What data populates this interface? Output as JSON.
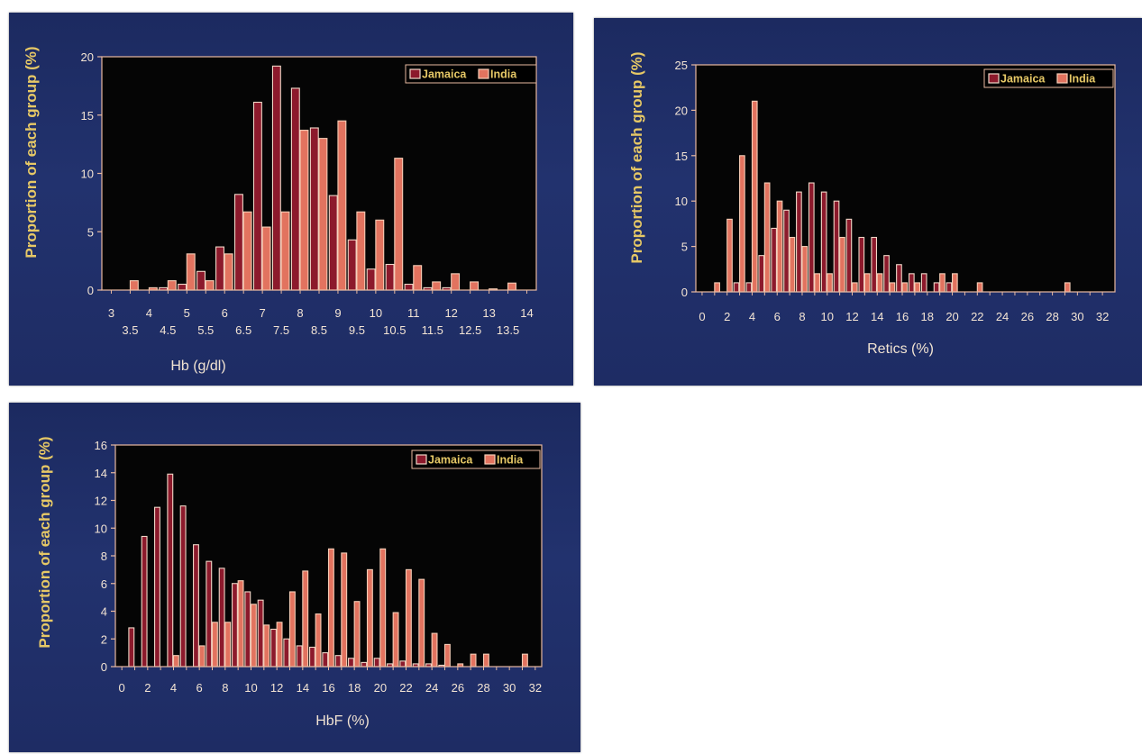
{
  "colors": {
    "background": "#ffffff",
    "slide_bg": "#1f2d66",
    "plot_bg": "#050505",
    "axis_line": "#e8b9a0",
    "jamaica_fill": "#8c1a2c",
    "jamaica_stroke": "#f0d8c8",
    "india_fill": "#e2735f",
    "india_stroke": "#f6cdb6",
    "title_yellow": "#e6c866",
    "text_light": "#f1e3d2"
  },
  "chart_data": [
    {
      "id": "hb",
      "type": "bar",
      "ylabel": "Proportion of each group (%)",
      "xlabel": "Hb (g/dl)",
      "ylim": [
        0,
        20
      ],
      "yticks": [
        0,
        5,
        10,
        15,
        20
      ],
      "xlim": [
        2.75,
        14.25
      ],
      "xticks_row1": [
        "3",
        "4",
        "5",
        "6",
        "7",
        "8",
        "9",
        "10",
        "11",
        "12",
        "13",
        "14"
      ],
      "xticks_row2": [
        "3.5",
        "4.5",
        "5.5",
        "6.5",
        "7.5",
        "8.5",
        "9.5",
        "10.5",
        "11.5",
        "12.5",
        "13.5"
      ],
      "legend": {
        "placement": "top-right",
        "entries": [
          "Jamaica",
          "India"
        ]
      },
      "x": [
        3,
        3.5,
        4,
        4.5,
        5,
        5.5,
        6,
        6.5,
        7,
        7.5,
        8,
        8.5,
        9,
        9.5,
        10,
        10.5,
        11,
        11.5,
        12,
        12.5,
        13,
        13.5,
        14
      ],
      "series": [
        {
          "name": "Jamaica",
          "values": [
            0,
            0,
            0,
            0.2,
            0.5,
            1.6,
            3.7,
            8.2,
            16.1,
            19.2,
            17.3,
            13.9,
            8.1,
            4.3,
            1.8,
            2.2,
            0.5,
            0.2,
            0.2,
            0,
            0,
            0,
            0
          ]
        },
        {
          "name": "India",
          "values": [
            0,
            0.8,
            0.2,
            0.8,
            3.1,
            0.8,
            3.1,
            6.7,
            5.4,
            6.7,
            13.7,
            13.0,
            14.5,
            6.7,
            6.0,
            11.3,
            2.1,
            0.7,
            1.4,
            0.7,
            0.1,
            0.6,
            0
          ]
        }
      ]
    },
    {
      "id": "retics",
      "type": "bar",
      "ylabel": "Proportion of each group (%)",
      "xlabel": "Retics (%)",
      "ylim": [
        0,
        25
      ],
      "yticks": [
        0,
        5,
        10,
        15,
        20,
        25
      ],
      "xlim": [
        -0.5,
        33
      ],
      "xticks_row1": [
        "0",
        "2",
        "4",
        "6",
        "8",
        "10",
        "12",
        "14",
        "16",
        "18",
        "20",
        "22",
        "24",
        "26",
        "28",
        "30",
        "32"
      ],
      "legend": {
        "placement": "top-right",
        "entries": [
          "Jamaica",
          "India"
        ]
      },
      "x": [
        0,
        1,
        2,
        3,
        4,
        5,
        6,
        7,
        8,
        9,
        10,
        11,
        12,
        13,
        14,
        15,
        16,
        17,
        18,
        19,
        20,
        21,
        22,
        23,
        24,
        25,
        26,
        27,
        28,
        29,
        30,
        31,
        32
      ],
      "series": [
        {
          "name": "Jamaica",
          "values": [
            0,
            0,
            0,
            1,
            1,
            4,
            7,
            9,
            11,
            12,
            11,
            10,
            8,
            6,
            6,
            4,
            3,
            2,
            2,
            1,
            1,
            0,
            0,
            0,
            0,
            0,
            0,
            0,
            0,
            0,
            0,
            0,
            0
          ]
        },
        {
          "name": "India",
          "values": [
            0,
            1,
            8,
            15,
            21,
            12,
            10,
            6,
            5,
            2,
            2,
            6,
            1,
            2,
            2,
            1,
            1,
            1,
            0,
            2,
            2,
            0,
            1,
            0,
            0,
            0,
            0,
            0,
            0,
            1,
            0,
            0,
            0
          ]
        }
      ]
    },
    {
      "id": "hbf",
      "type": "bar",
      "ylabel": "Proportion of each group (%)",
      "xlabel": "HbF (%)",
      "ylim": [
        0,
        16
      ],
      "yticks": [
        0,
        2,
        4,
        6,
        8,
        10,
        12,
        14,
        16
      ],
      "xlim": [
        -0.5,
        32.5
      ],
      "xticks_row1": [
        "0",
        "2",
        "4",
        "6",
        "8",
        "10",
        "12",
        "14",
        "16",
        "18",
        "20",
        "22",
        "24",
        "26",
        "28",
        "30",
        "32"
      ],
      "legend": {
        "placement": "top-right",
        "entries": [
          "Jamaica",
          "India"
        ]
      },
      "x": [
        0,
        1,
        2,
        3,
        4,
        5,
        6,
        7,
        8,
        9,
        10,
        11,
        12,
        13,
        14,
        15,
        16,
        17,
        18,
        19,
        20,
        21,
        22,
        23,
        24,
        25,
        26,
        27,
        28,
        29,
        30,
        31,
        32
      ],
      "series": [
        {
          "name": "Jamaica",
          "values": [
            0,
            2.8,
            9.4,
            11.5,
            13.9,
            11.6,
            8.8,
            7.6,
            7.1,
            6.0,
            5.4,
            4.8,
            2.7,
            2.0,
            1.5,
            1.4,
            1.0,
            0.8,
            0.6,
            0.3,
            0.6,
            0.2,
            0.4,
            0.2,
            0.2,
            0.1,
            0,
            0,
            0,
            0,
            0,
            0,
            0
          ]
        },
        {
          "name": "India",
          "values": [
            0,
            0,
            0,
            0,
            0.8,
            0,
            1.5,
            3.2,
            3.2,
            6.2,
            4.5,
            3.0,
            3.2,
            5.4,
            6.9,
            3.8,
            8.5,
            8.2,
            4.7,
            7.0,
            8.5,
            3.9,
            7.0,
            6.3,
            2.4,
            1.6,
            0.2,
            0.9,
            0.9,
            0,
            0,
            0.9,
            0
          ]
        }
      ]
    }
  ]
}
